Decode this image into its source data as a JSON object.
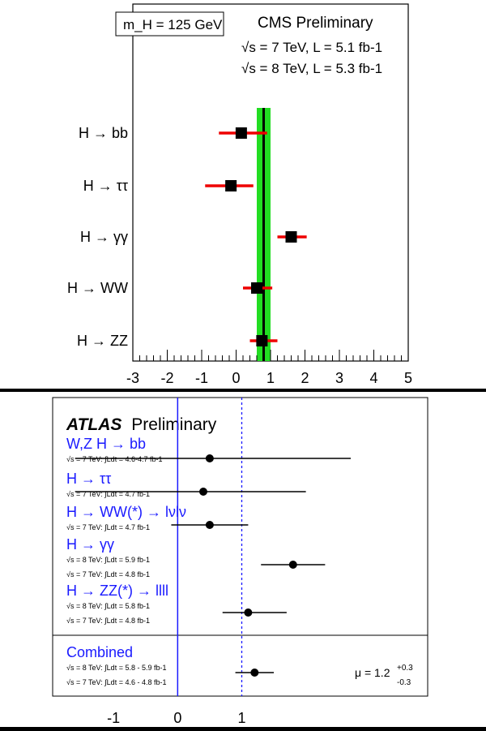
{
  "chart_data": [
    {
      "type": "scatter",
      "title": "CMS Preliminary",
      "annotations": {
        "mass_box": "m_H = 125 GeV",
        "lumi_7": "√s = 7 TeV, L = 5.1 fb-1",
        "lumi_8": "√s = 8 TeV, L = 5.3 fb-1"
      },
      "categories": [
        "H → bb",
        "H → ττ",
        "H → γγ",
        "H → WW",
        "H → ZZ"
      ],
      "values": [
        0.15,
        -0.15,
        1.6,
        0.6,
        0.75
      ],
      "err_low": [
        0.65,
        0.75,
        0.4,
        0.4,
        0.35
      ],
      "err_high": [
        0.75,
        0.65,
        0.45,
        0.45,
        0.45
      ],
      "combined": {
        "value": 0.8,
        "band": [
          0.6,
          1.0
        ]
      },
      "xlim": [
        -3,
        5
      ],
      "xticks": [
        "-3",
        "-2",
        "-1",
        "0",
        "1",
        "2",
        "3",
        "4",
        "5"
      ],
      "colors": {
        "marker": "#000000",
        "errorbar": "#ee0000",
        "band": "#22dd22",
        "line": "#000000"
      }
    },
    {
      "type": "scatter",
      "title": "ATLAS Preliminary",
      "title_bold": "ATLAS",
      "title_rest": "Preliminary",
      "channels": [
        {
          "name": "W,Z H → bb",
          "lumi": [
            "√s = 7 TeV: ∫Ldt = 4.6-4.7 fb-1"
          ],
          "value": 0.5,
          "err_low": 2.1,
          "err_high": 2.2
        },
        {
          "name": "H → ττ",
          "lumi": [
            "√s = 7 TeV: ∫Ldt = 4.7 fb-1"
          ],
          "value": 0.4,
          "err_low": 2.0,
          "err_high": 1.6
        },
        {
          "name": "H → WW(*) → lνlν",
          "lumi": [
            "√s = 7 TeV: ∫Ldt = 4.7 fb-1"
          ],
          "value": 0.5,
          "err_low": 0.6,
          "err_high": 0.6
        },
        {
          "name": "H → γγ",
          "lumi": [
            "√s = 8 TeV: ∫Ldt = 5.9 fb-1",
            "√s = 7 TeV: ∫Ldt = 4.8 fb-1"
          ],
          "value": 1.8,
          "err_low": 0.5,
          "err_high": 0.5
        },
        {
          "name": "H → ZZ(*) → llll",
          "lumi": [
            "√s = 8 TeV: ∫Ldt = 5.8 fb-1",
            "√s = 7 TeV: ∫Ldt = 4.8 fb-1"
          ],
          "value": 1.1,
          "err_low": 0.4,
          "err_high": 0.6
        }
      ],
      "combined": {
        "name": "Combined",
        "lumi": [
          "√s = 8 TeV: ∫Ldt = 5.8 - 5.9 fb-1",
          "√s = 7 TeV: ∫Ldt = 4.6 - 4.8 fb-1"
        ],
        "value": 1.2,
        "err_low": 0.3,
        "err_high": 0.3,
        "label_mu": "μ = 1.2",
        "label_up": "+0.3",
        "label_down": "-0.3"
      },
      "reference_lines": {
        "solid": 0,
        "dashed": 1
      },
      "xlim": [
        -1.95,
        3.9
      ],
      "xticks": [
        "-1",
        "0",
        "1"
      ],
      "colors": {
        "marker": "#000000",
        "label": "#1a1aff",
        "line": "#1a1aff"
      }
    }
  ]
}
